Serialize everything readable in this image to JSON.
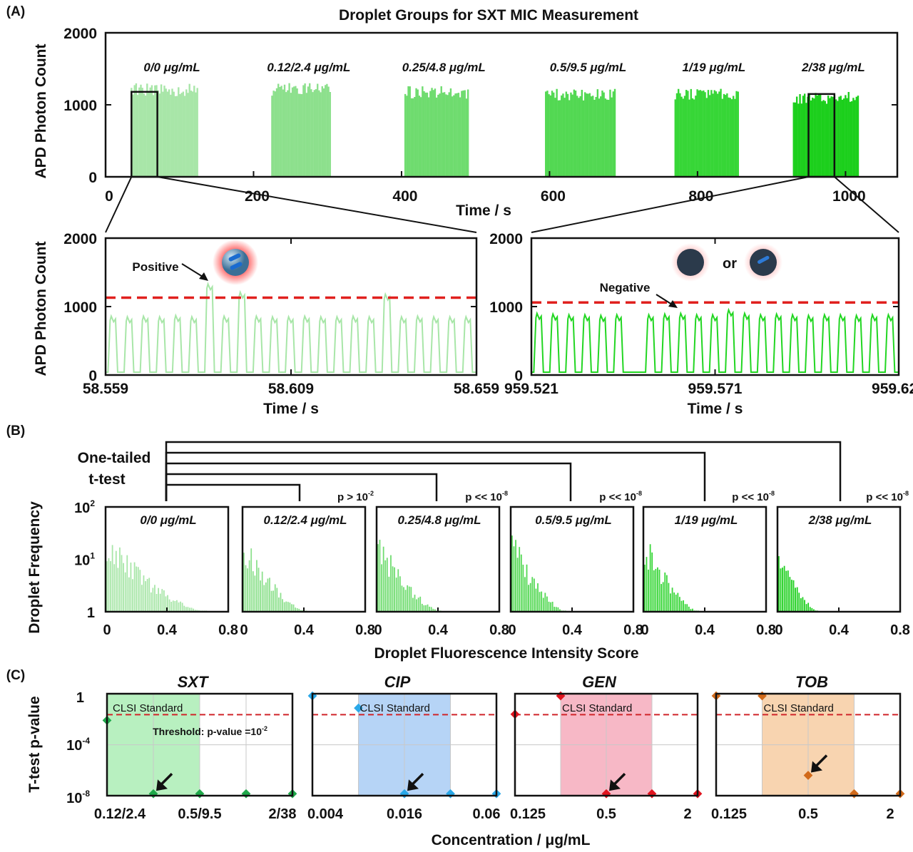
{
  "panel_labels": {
    "a": "(A)",
    "b": "(B)",
    "c": "(C)"
  },
  "colors": {
    "g0": "#a8e6a8",
    "g1": "#8de08d",
    "g2": "#6fdc6f",
    "g3": "#52d852",
    "g4": "#37d637",
    "g5": "#1ccf1c",
    "threshold": "#e0201e",
    "sxt": "#1fa84a",
    "cip": "#2aa8e8",
    "gen": "#e0141e",
    "tob": "#d26a1a",
    "sxt_band": "#b8f0c0",
    "cip_band": "#b6d4f6",
    "gen_band": "#f7b8c6",
    "tob_band": "#f8d4b0"
  },
  "chart_data": [
    {
      "id": "A_top",
      "type": "bar",
      "title": "Droplet Groups for SXT MIC Measurement",
      "xlabel": "Time / s",
      "ylabel": "APD Photon Count",
      "xlim": [
        0,
        1070
      ],
      "ylim": [
        0,
        2000
      ],
      "xticks": [
        "0",
        "200",
        "400",
        "600",
        "800",
        "1000"
      ],
      "xtick_values": [
        0,
        200,
        400,
        600,
        800,
        1000
      ],
      "yticks": [
        "0",
        "1000",
        "2000"
      ],
      "ytick_values": [
        0,
        1000,
        2000
      ],
      "groups": [
        {
          "label": "0/0 μg/mL",
          "start": 35,
          "end": 125,
          "level": 1300
        },
        {
          "label": "0.12/2.4 μg/mL",
          "start": 225,
          "end": 305,
          "level": 1310
        },
        {
          "label": "0.25/4.8 μg/mL",
          "start": 405,
          "end": 490,
          "level": 1260
        },
        {
          "label": "0.5/9.5 μg/mL",
          "start": 595,
          "end": 690,
          "level": 1230
        },
        {
          "label": "1/19 μg/mL",
          "start": 770,
          "end": 855,
          "level": 1230
        },
        {
          "label": "2/38 μg/mL",
          "start": 930,
          "end": 1018,
          "level": 1180
        }
      ],
      "zoom_boxes": [
        {
          "x_start": 35,
          "x_end": 70,
          "y_top": 1180
        },
        {
          "x_start": 950,
          "x_end": 985,
          "y_top": 1150
        }
      ]
    },
    {
      "id": "A_zoom_left",
      "type": "line",
      "xlabel": "Time / s",
      "ylabel": "APD Photon Count",
      "xlim": [
        58.559,
        58.659
      ],
      "ylim": [
        0,
        2000
      ],
      "xticks": [
        "58.559",
        "58.609",
        "58.659"
      ],
      "xtick_values": [
        58.559,
        58.609,
        58.659
      ],
      "yticks": [
        "0",
        "1000",
        "2000"
      ],
      "ytick_values": [
        0,
        1000,
        2000
      ],
      "threshold": 1130,
      "annotation": "Positive",
      "peaks": [
        860,
        850,
        860,
        850,
        870,
        850,
        1330,
        860,
        1210,
        860,
        850,
        850,
        860,
        850,
        850,
        860,
        850,
        1180,
        850,
        860,
        850,
        850,
        850
      ]
    },
    {
      "id": "A_zoom_right",
      "type": "line",
      "xlabel": "Time / s",
      "xlim": [
        959.521,
        959.621
      ],
      "ylim": [
        0,
        2000
      ],
      "xticks": [
        "959.521",
        "959.571",
        "959.621"
      ],
      "xtick_values": [
        959.521,
        959.571,
        959.621
      ],
      "yticks": [
        "0",
        "1000",
        "2000"
      ],
      "ytick_values": [
        0,
        1000,
        2000
      ],
      "threshold": 1060,
      "annotation": "Negative",
      "legend_or": "or",
      "peaks": [
        900,
        890,
        880,
        880,
        870,
        880,
        0,
        880,
        890,
        900,
        880,
        880,
        950,
        900,
        880,
        890,
        880,
        870,
        880,
        880,
        870,
        880,
        880
      ]
    },
    {
      "id": "B",
      "type": "bar",
      "log_y": true,
      "xlabel": "Droplet Fluorescence Intensity Score",
      "ylabel": "Droplet Frequency",
      "ttest_label_1": "One-tailed",
      "ttest_label_2": "t-test",
      "xticks": [
        "0",
        "0.4",
        "0.8"
      ],
      "xtick_values": [
        0,
        0.4,
        0.8
      ],
      "yticks": [
        "1",
        "10",
        "10"
      ],
      "ytick_exponents": [
        "",
        "1",
        "2"
      ],
      "xlim": [
        0,
        0.8
      ],
      "ylim": [
        1,
        100
      ],
      "panels": [
        {
          "label": "0/0 μg/mL",
          "p": "",
          "max_x": 0.66
        },
        {
          "label": "0.12/2.4 μg/mL",
          "p_text": "p > 10",
          "p_exp": "-2",
          "max_x": 0.42
        },
        {
          "label": "0.25/4.8 μg/mL",
          "p_text": "p << 10",
          "p_exp": "-8",
          "max_x": 0.42
        },
        {
          "label": "0.5/9.5 μg/mL",
          "p_text": "p << 10",
          "p_exp": "-8",
          "max_x": 0.36
        },
        {
          "label": "1/19 μg/mL",
          "p_text": "p << 10",
          "p_exp": "-8",
          "max_x": 0.36
        },
        {
          "label": "2/38 μg/mL",
          "p_text": "p << 10",
          "p_exp": "-8",
          "max_x": 0.26
        }
      ]
    },
    {
      "id": "C",
      "type": "scatter",
      "ylabel": "T-test p-value",
      "xlabel": "Concentration / μg/mL",
      "yticks": [
        "1",
        "10",
        "10"
      ],
      "ytick_exponents": [
        "",
        "-4",
        "-8"
      ],
      "threshold_label": "Threshold: p-value =10",
      "threshold_exp": "-2",
      "band_label": "CLSI Standard",
      "panels": [
        {
          "name": "SXT",
          "xticks": [
            "0.12/2.4",
            "0.5/9.5",
            "2/38"
          ],
          "log10_p": [
            -2,
            -8,
            -8,
            -8,
            -8
          ],
          "band": [
            0,
            2
          ],
          "mic_index": 1
        },
        {
          "name": "CIP",
          "xticks": [
            "0.004",
            "0.016",
            "0.06"
          ],
          "log10_p": [
            0,
            -1,
            -8,
            -8,
            -8
          ],
          "band": [
            1,
            3
          ],
          "mic_index": 2
        },
        {
          "name": "GEN",
          "xticks": [
            "0.125",
            "0.5",
            "2"
          ],
          "log10_p": [
            -1.5,
            0,
            -8,
            -8,
            -8
          ],
          "band": [
            1,
            3
          ],
          "mic_index": 2
        },
        {
          "name": "TOB",
          "xticks": [
            "0.125",
            "0.5",
            "2"
          ],
          "log10_p": [
            0,
            0,
            -6.5,
            -8,
            -8
          ],
          "band": [
            1,
            3
          ],
          "mic_index": 2
        }
      ]
    }
  ]
}
